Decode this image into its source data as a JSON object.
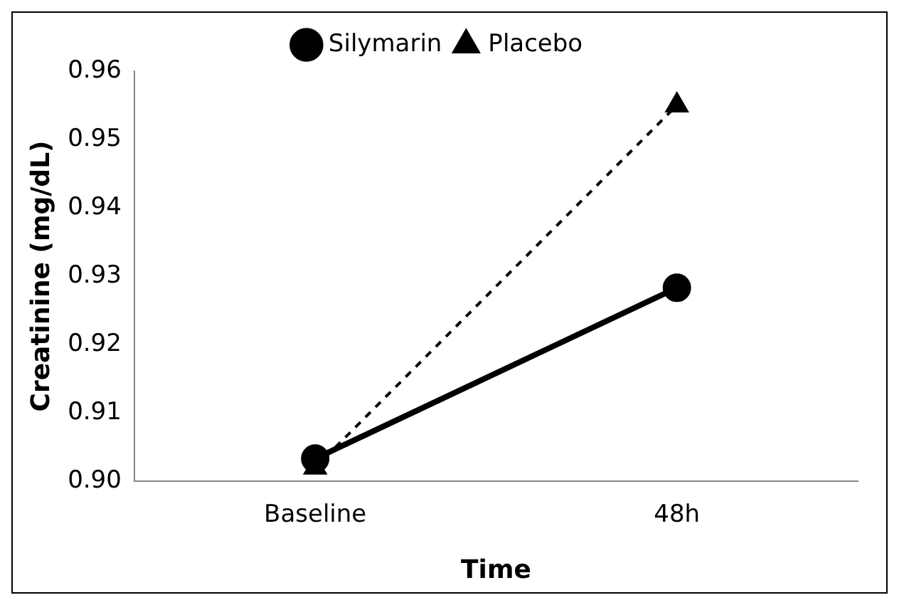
{
  "chart_data": {
    "type": "line",
    "xlabel": "Time",
    "ylabel": "Creatinine (mg/dL)",
    "categories": [
      "Baseline",
      "48h"
    ],
    "series": [
      {
        "name": "Silymarin",
        "color": "#000000",
        "values": [
          0.9033,
          0.9283
        ],
        "marker": "circle",
        "line_style": "solid"
      },
      {
        "name": "Placebo",
        "color": "#000000",
        "values": [
          0.902,
          0.955
        ],
        "marker": "triangle",
        "line_style": "dashed"
      }
    ],
    "ylim": [
      0.9,
      0.96
    ],
    "yticks": [
      {
        "value": 0.9,
        "label": "0.90"
      },
      {
        "value": 0.91,
        "label": "0.91"
      },
      {
        "value": 0.92,
        "label": "0.92"
      },
      {
        "value": 0.93,
        "label": "0.93"
      },
      {
        "value": 0.94,
        "label": "0.94"
      },
      {
        "value": 0.95,
        "label": "0.95"
      },
      {
        "value": 0.96,
        "label": "0.96"
      }
    ],
    "grid": false,
    "legend": "top"
  }
}
